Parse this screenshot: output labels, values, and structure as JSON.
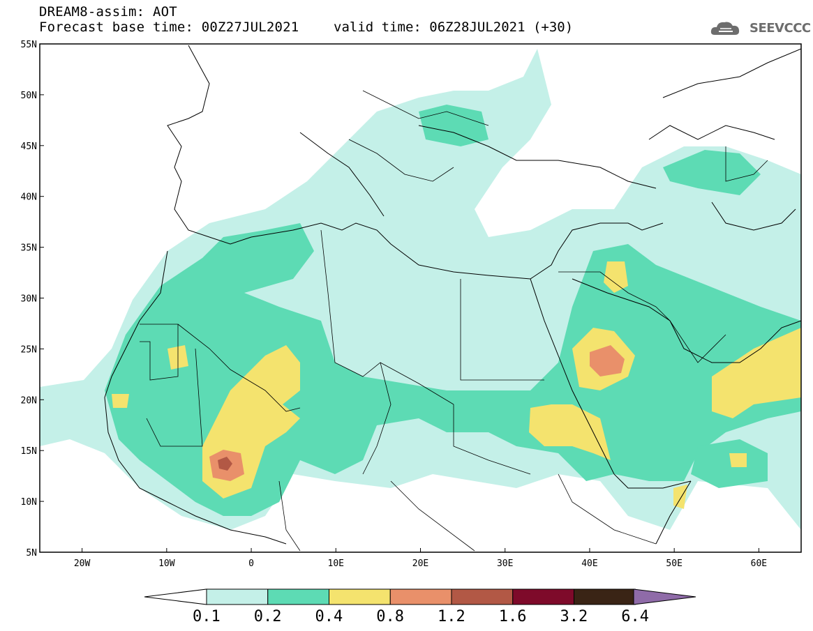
{
  "header": {
    "title": "DREAM8-assim: AOT",
    "base_time": "Forecast base time: 00Z27JUL2021",
    "valid_time": "valid time: 06Z28JUL2021 (+30)",
    "logo_text": "SEEVCCC"
  },
  "map": {
    "lon_range": [
      -25,
      65
    ],
    "lat_range": [
      5,
      55
    ],
    "lon_ticks": [
      "20W",
      "10W",
      "0",
      "10E",
      "20E",
      "30E",
      "40E",
      "50E",
      "60E"
    ],
    "lat_ticks": [
      "55N",
      "50N",
      "45N",
      "40N",
      "35N",
      "30N",
      "25N",
      "20N",
      "15N",
      "10N",
      "5N"
    ]
  },
  "colorbar": {
    "labels": [
      "0.1",
      "0.2",
      "0.4",
      "0.8",
      "1.2",
      "1.6",
      "3.2",
      "6.4"
    ],
    "colors": [
      "#ffffff",
      "#c4f0e8",
      "#5ddbb4",
      "#f4e36e",
      "#e9906a",
      "#b25845",
      "#7e0a2a",
      "#3a2415",
      "#8f6ba8"
    ]
  },
  "levels": {
    "c1": "#c4f0e8",
    "c2": "#5ddbb4",
    "c3": "#f4e36e",
    "c4": "#e9906a",
    "c5": "#b25845"
  }
}
